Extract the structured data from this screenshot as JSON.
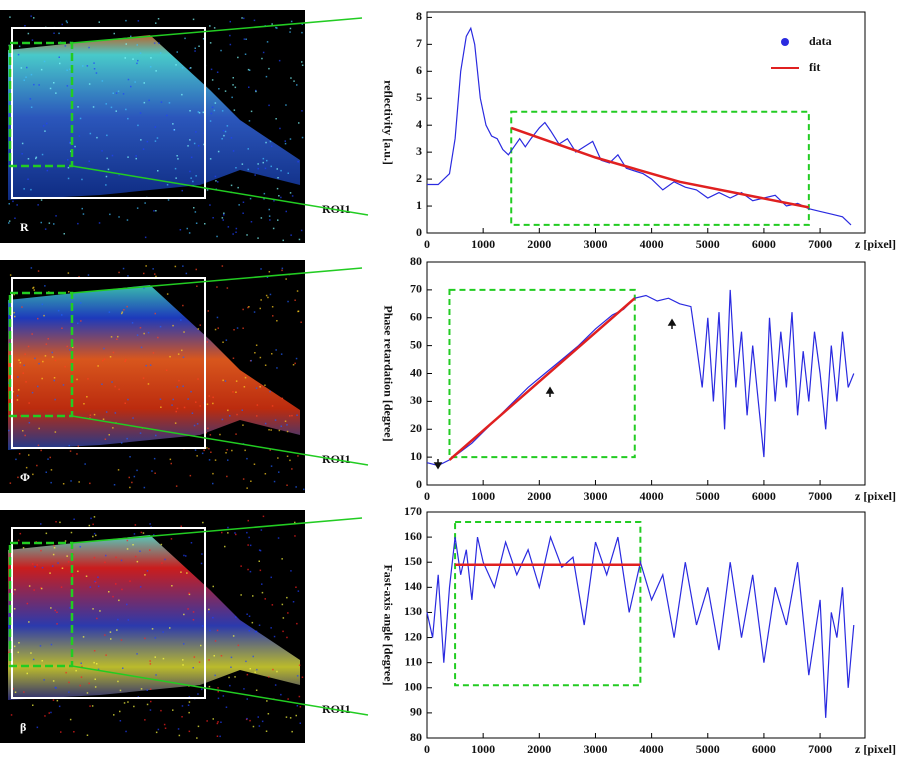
{
  "images": [
    {
      "label": "R",
      "roi_label": "ROI1"
    },
    {
      "label": "Φ",
      "roi_label": "ROI1"
    },
    {
      "label": "β",
      "roi_label": "ROI1"
    }
  ],
  "chart_data": [
    {
      "type": "line",
      "y_label": "reflectivity [a.u.]",
      "x_label": "z [pixel]",
      "xlim": [
        0,
        7800
      ],
      "xticks": [
        0,
        1000,
        2000,
        3000,
        4000,
        5000,
        6000,
        7000
      ],
      "ylim": [
        0,
        8.2
      ],
      "yticks": [
        0,
        1,
        2,
        3,
        4,
        5,
        6,
        7,
        8
      ],
      "legend": "upper right",
      "roi_box": {
        "x": [
          1500,
          6800
        ],
        "y": [
          0.3,
          4.5
        ]
      },
      "series": [
        {
          "name": "data",
          "color": "#2a2ae0",
          "x": [
            0,
            200,
            400,
            500,
            600,
            700,
            780,
            850,
            950,
            1050,
            1150,
            1250,
            1350,
            1450,
            1550,
            1650,
            1750,
            1850,
            2000,
            2100,
            2200,
            2350,
            2500,
            2650,
            2800,
            2950,
            3100,
            3250,
            3400,
            3550,
            3700,
            3850,
            4000,
            4200,
            4400,
            4600,
            4800,
            5000,
            5200,
            5400,
            5600,
            5800,
            6000,
            6200,
            6400,
            6600,
            6800,
            7000,
            7200,
            7400,
            7550
          ],
          "values": [
            1.8,
            1.8,
            2.2,
            3.5,
            6,
            7.3,
            7.6,
            7,
            5,
            4,
            3.6,
            3.5,
            3.1,
            2.9,
            3.2,
            3.5,
            3.2,
            3.5,
            3.9,
            4.1,
            3.8,
            3.3,
            3.5,
            3.0,
            3.2,
            3.4,
            2.7,
            2.6,
            2.9,
            2.4,
            2.3,
            2.2,
            2.0,
            1.6,
            1.9,
            1.7,
            1.6,
            1.3,
            1.5,
            1.3,
            1.5,
            1.2,
            1.3,
            1.4,
            1.0,
            1.1,
            0.9,
            0.8,
            0.7,
            0.6,
            0.3
          ]
        },
        {
          "name": "fit",
          "color": "#e02020",
          "x": [
            1500,
            3000,
            4500,
            6800
          ],
          "values": [
            3.9,
            2.8,
            1.9,
            0.95
          ]
        }
      ]
    },
    {
      "type": "line",
      "y_label": "Phase retardation [degree]",
      "x_label": "z [pixel]",
      "xlim": [
        0,
        7800
      ],
      "xticks": [
        0,
        1000,
        2000,
        3000,
        4000,
        5000,
        6000,
        7000
      ],
      "ylim": [
        0,
        80
      ],
      "yticks": [
        0,
        10,
        20,
        30,
        40,
        50,
        60,
        70,
        80
      ],
      "roi_box": {
        "x": [
          400,
          3700
        ],
        "y": [
          10,
          70
        ]
      },
      "series": [
        {
          "color": "#2a2ae0",
          "x": [
            0,
            200,
            400,
            600,
            800,
            1000,
            1200,
            1500,
            1800,
            2100,
            2400,
            2700,
            3000,
            3300,
            3500,
            3700,
            3900,
            4100,
            4300,
            4500,
            4700,
            4800,
            4900,
            5000,
            5100,
            5200,
            5300,
            5400,
            5500,
            5600,
            5700,
            5800,
            5900,
            6000,
            6100,
            6200,
            6300,
            6400,
            6500,
            6600,
            6700,
            6800,
            6900,
            7000,
            7100,
            7200,
            7300,
            7400,
            7500,
            7600
          ],
          "values": [
            8,
            7,
            9,
            12,
            15,
            19,
            23,
            29,
            35,
            40,
            45,
            50,
            56,
            61,
            63,
            67,
            68,
            66,
            67,
            65,
            64,
            50,
            35,
            60,
            30,
            62,
            20,
            70,
            35,
            55,
            25,
            50,
            30,
            10,
            60,
            30,
            55,
            35,
            62,
            25,
            48,
            30,
            55,
            40,
            20,
            50,
            30,
            55,
            35,
            40
          ]
        },
        {
          "color": "#e02020",
          "x": [
            400,
            3700
          ],
          "values": [
            9,
            67
          ]
        }
      ]
    },
    {
      "type": "line",
      "y_label": "Fast-axis angle [degree]",
      "x_label": "z [pixel]",
      "xlim": [
        0,
        7800
      ],
      "xticks": [
        0,
        1000,
        2000,
        3000,
        4000,
        5000,
        6000,
        7000
      ],
      "ylim": [
        80,
        170
      ],
      "yticks": [
        80,
        90,
        100,
        110,
        120,
        130,
        140,
        150,
        160,
        170
      ],
      "roi_box": {
        "x": [
          500,
          3800
        ],
        "y": [
          101,
          166
        ]
      },
      "series": [
        {
          "color": "#2a2ae0",
          "x": [
            0,
            100,
            200,
            300,
            400,
            500,
            600,
            700,
            800,
            900,
            1000,
            1200,
            1400,
            1600,
            1800,
            2000,
            2200,
            2400,
            2600,
            2800,
            3000,
            3200,
            3400,
            3600,
            3800,
            4000,
            4200,
            4400,
            4600,
            4800,
            5000,
            5200,
            5400,
            5600,
            5800,
            6000,
            6200,
            6400,
            6600,
            6800,
            7000,
            7100,
            7200,
            7300,
            7400,
            7500,
            7600
          ],
          "values": [
            130,
            120,
            145,
            110,
            140,
            160,
            145,
            155,
            135,
            160,
            150,
            140,
            158,
            145,
            155,
            140,
            160,
            148,
            152,
            125,
            158,
            145,
            160,
            130,
            150,
            135,
            145,
            120,
            150,
            125,
            140,
            115,
            150,
            120,
            145,
            110,
            140,
            125,
            150,
            105,
            135,
            88,
            130,
            120,
            140,
            100,
            125
          ]
        },
        {
          "color": "#e02020",
          "x": [
            500,
            3800
          ],
          "values": [
            149,
            149
          ]
        }
      ]
    }
  ]
}
